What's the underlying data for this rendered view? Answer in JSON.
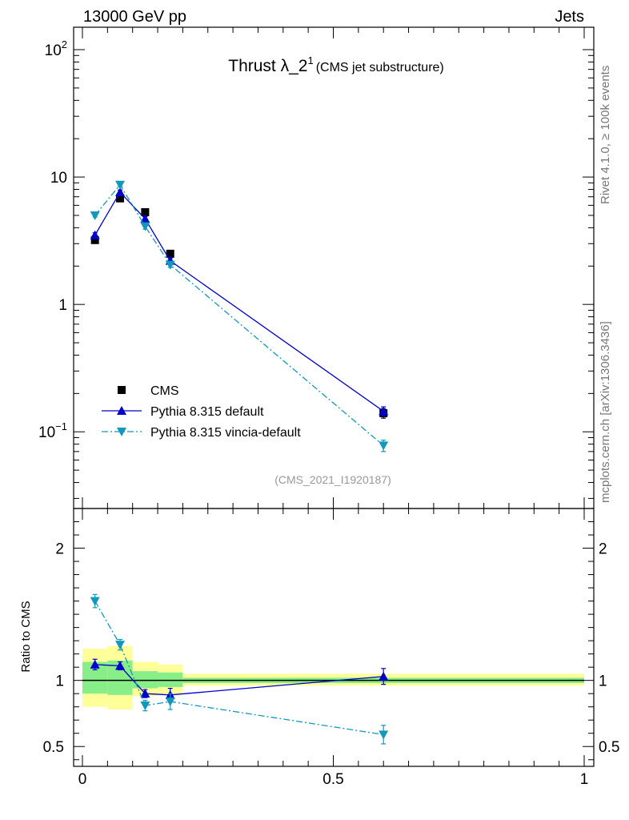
{
  "header": {
    "left": "13000 GeV pp",
    "right": "Jets"
  },
  "side": {
    "rivet": "Rivet 4.1.0, ≥ 100k events",
    "mcplots": "mcplots.cern.ch [arXiv:1306.3436]"
  },
  "colors": {
    "cms": "#000000",
    "pythia_default": "#0000cc",
    "vincia": "#1199bb",
    "band_inner": "#88ee88",
    "band_outer": "#ffff99"
  },
  "chart_data": [
    {
      "type": "scatter",
      "panel": "main",
      "title": "Thrust λ_2",
      "title_sup": "1",
      "title_note": "(CMS jet substructure)",
      "analysis_id": "(CMS_2021_I1920187)",
      "yscale": "log",
      "ylim": [
        0.025,
        150
      ],
      "xlim": [
        -0.02,
        1.02
      ],
      "y_tick_labels": [
        {
          "value": 100,
          "base": "10",
          "exp": "2"
        },
        {
          "value": 10,
          "base": "10",
          "exp": ""
        },
        {
          "value": 1,
          "base": "1",
          "exp": ""
        },
        {
          "value": 0.1,
          "base": "10",
          "exp": "−1"
        }
      ],
      "legend_position": "lower-left",
      "series": [
        {
          "name": "CMS",
          "marker": "square",
          "x": [
            0.025,
            0.075,
            0.125,
            0.175,
            0.6
          ],
          "y": [
            3.2,
            6.8,
            5.3,
            2.5,
            0.14
          ],
          "yerr": [
            0.1,
            0.15,
            0.15,
            0.08,
            0.012
          ]
        },
        {
          "name": "Pythia 8.315 default",
          "marker": "triangle-up",
          "line": "solid",
          "x": [
            0.025,
            0.075,
            0.125,
            0.175,
            0.6
          ],
          "y": [
            3.5,
            7.6,
            4.7,
            2.2,
            0.145
          ],
          "yerr": [
            0.15,
            0.3,
            0.2,
            0.1,
            0.012
          ]
        },
        {
          "name": "Pythia 8.315 vincia-default",
          "marker": "triangle-down",
          "line": "dashdot",
          "x": [
            0.025,
            0.075,
            0.125,
            0.175,
            0.6
          ],
          "y": [
            5.0,
            8.7,
            4.1,
            2.05,
            0.078
          ],
          "yerr": [
            0.15,
            0.3,
            0.2,
            0.1,
            0.008
          ]
        }
      ]
    },
    {
      "type": "scatter",
      "panel": "ratio",
      "ylabel": "Ratio to CMS",
      "ylim": [
        0.35,
        2.3
      ],
      "xlim": [
        -0.02,
        1.02
      ],
      "y_ticks": [
        0.5,
        1,
        2
      ],
      "y_tick_labels": [
        "0.5",
        "1",
        "2"
      ],
      "x_ticks": [
        0,
        0.5,
        1
      ],
      "x_tick_labels": [
        "0",
        "0.5",
        "1"
      ],
      "bands": {
        "edges": [
          0,
          0.05,
          0.1,
          0.15,
          0.2,
          1.0
        ],
        "inner": [
          [
            0.9,
            1.14
          ],
          [
            0.89,
            1.15
          ],
          [
            0.94,
            1.07
          ],
          [
            0.95,
            1.06
          ],
          [
            0.98,
            1.02
          ]
        ],
        "outer": [
          [
            0.8,
            1.24
          ],
          [
            0.78,
            1.26
          ],
          [
            0.88,
            1.14
          ],
          [
            0.9,
            1.12
          ],
          [
            0.96,
            1.05
          ]
        ]
      },
      "series": [
        {
          "name": "Pythia 8.315 default",
          "x": [
            0.025,
            0.075,
            0.125,
            0.175,
            0.6
          ],
          "y": [
            1.12,
            1.11,
            0.9,
            0.89,
            1.03
          ],
          "yerr": [
            0.04,
            0.03,
            0.03,
            0.05,
            0.06
          ]
        },
        {
          "name": "Pythia 8.315 vincia-default",
          "x": [
            0.025,
            0.075,
            0.125,
            0.175,
            0.6
          ],
          "y": [
            1.6,
            1.27,
            0.81,
            0.84,
            0.59
          ],
          "yerr": [
            0.05,
            0.04,
            0.04,
            0.06,
            0.07
          ]
        }
      ]
    }
  ]
}
